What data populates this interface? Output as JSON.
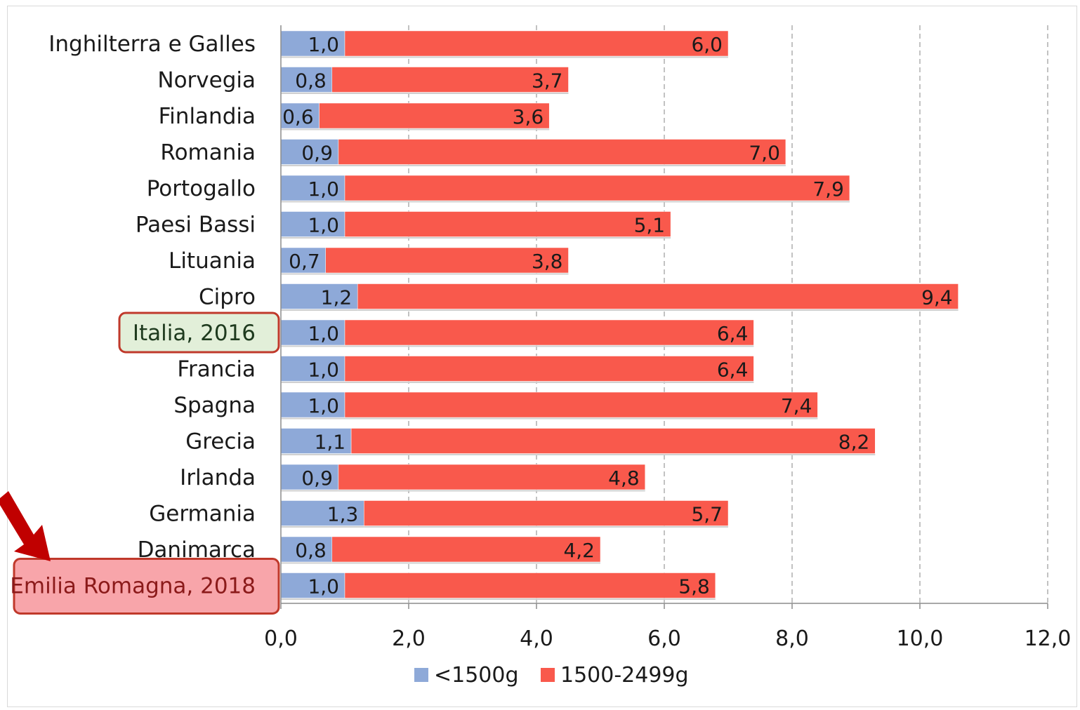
{
  "chart_data": {
    "type": "bar",
    "stacked": true,
    "orientation": "horizontal",
    "categories": [
      "Inghilterra e Galles",
      "Norvegia",
      "Finlandia",
      "Romania",
      "Portogallo",
      "Paesi Bassi",
      "Lituania",
      "Cipro",
      "Italia, 2016",
      "Francia",
      "Spagna",
      "Grecia",
      "Irlanda",
      "Germania",
      "Danimarca",
      "Emilia Romagna, 2018"
    ],
    "series": [
      {
        "name": "<1500g",
        "color": "#8EA9D8",
        "values": [
          1.0,
          0.8,
          0.6,
          0.9,
          1.0,
          1.0,
          0.7,
          1.2,
          1.0,
          1.0,
          1.0,
          1.1,
          0.9,
          1.3,
          0.8,
          1.0
        ],
        "labels": [
          "1,0",
          "0,8",
          "0,6",
          "0,9",
          "1,0",
          "1,0",
          "0,7",
          "1,2",
          "1,0",
          "1,0",
          "1,0",
          "1,1",
          "0,9",
          "1,3",
          "0,8",
          "1,0"
        ]
      },
      {
        "name": "1500-2499g",
        "color": "#F9594C",
        "values": [
          6.0,
          3.7,
          3.6,
          7.0,
          7.9,
          5.1,
          3.8,
          9.4,
          6.4,
          6.4,
          7.4,
          8.2,
          4.8,
          5.7,
          4.2,
          5.8
        ],
        "labels": [
          "6,0",
          "3,7",
          "3,6",
          "7,0",
          "7,9",
          "5,1",
          "3,8",
          "9,4",
          "6,4",
          "6,4",
          "7,4",
          "8,2",
          "4,8",
          "5,7",
          "4,2",
          "5,8"
        ]
      }
    ],
    "xlim": [
      0,
      12
    ],
    "xticks": [
      "0,0",
      "2,0",
      "4,0",
      "6,0",
      "8,0",
      "10,0",
      "12,0"
    ],
    "grid": "vertical dashed",
    "legend_position": "bottom",
    "highlights": [
      {
        "category": "Italia, 2016",
        "fill": "#E2EFD9",
        "border": "#C0392B"
      },
      {
        "category": "Emilia Romagna, 2018",
        "fill": "#F8A5AA",
        "border": "#C0392B",
        "arrow": true
      }
    ]
  }
}
